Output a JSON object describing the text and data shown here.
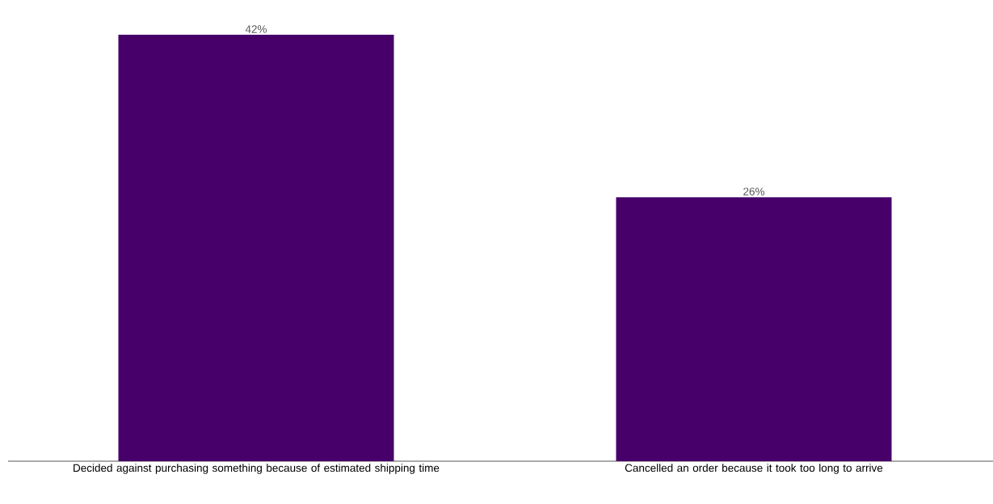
{
  "chart_data": {
    "type": "bar",
    "categories": [
      "Decided against purchasing something because of estimated shipping time",
      "Cancelled an order because it took too long to arrive"
    ],
    "values": [
      42,
      26
    ],
    "value_labels": [
      "42%",
      "26%"
    ],
    "color": "#470069"
  }
}
